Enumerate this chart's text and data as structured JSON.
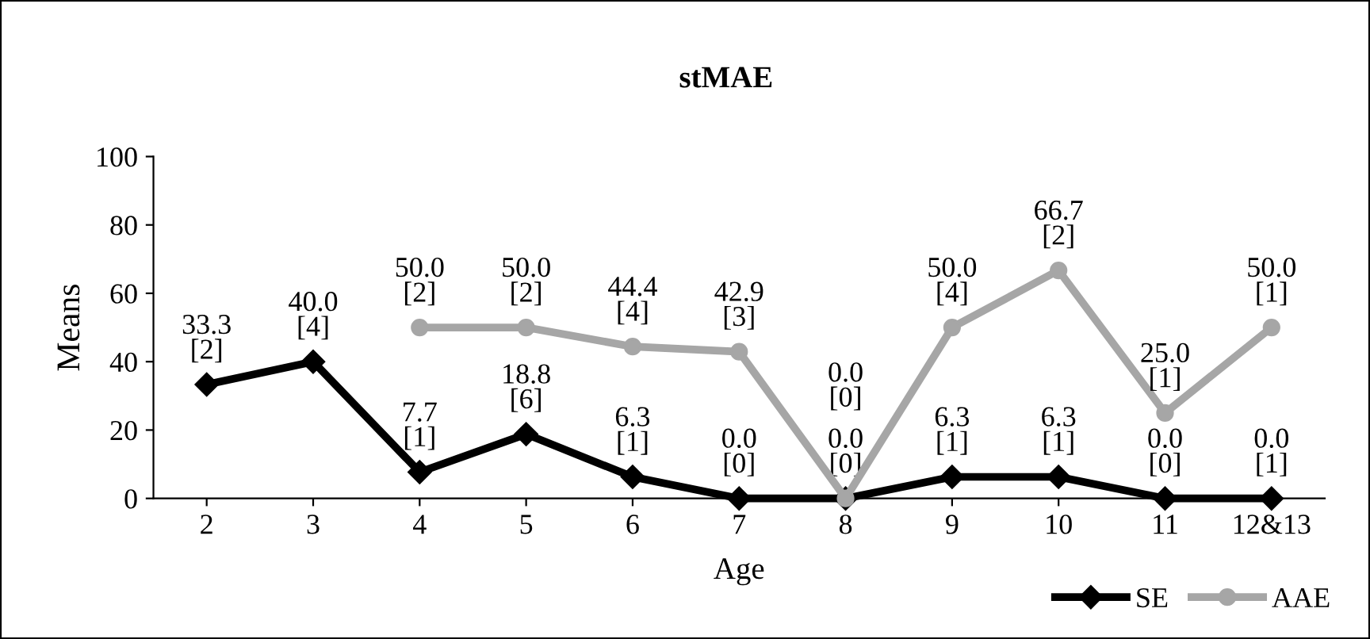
{
  "chart_data": {
    "type": "line",
    "title": "stMAE",
    "xlabel": "Age",
    "ylabel": "Means",
    "categories": [
      "2",
      "3",
      "4",
      "5",
      "6",
      "7",
      "8",
      "9",
      "10",
      "11",
      "12&13"
    ],
    "series": [
      {
        "name": "SE",
        "color": "#000000",
        "marker": "diamond",
        "values": [
          33.3,
          40.0,
          7.7,
          18.8,
          6.3,
          0.0,
          0.0,
          6.3,
          6.3,
          0.0,
          0.0
        ],
        "value_labels": [
          "33.3\n[2]",
          "40.0\n[4]",
          "7.7\n[1]",
          "18.8\n[6]",
          "6.3\n[1]",
          "0.0\n[0]",
          "0.0\n[0]",
          "6.3\n[1]",
          "6.3\n[1]",
          "0.0\n[0]",
          "0.0\n[1]"
        ]
      },
      {
        "name": "AAE",
        "color": "#a6a6a6",
        "marker": "circle",
        "values": [
          null,
          null,
          50.0,
          50.0,
          44.4,
          42.9,
          0.0,
          50.0,
          66.7,
          25.0,
          50.0
        ],
        "value_labels": [
          null,
          null,
          "50.0\n[2]",
          "50.0\n[2]",
          "44.4\n[4]",
          "42.9\n[3]",
          "0.0\n[0]",
          "50.0\n[4]",
          "66.7\n[2]",
          "25.0\n[1]",
          "50.0\n[1]"
        ]
      }
    ],
    "ylim": [
      0,
      100
    ],
    "yticks": [
      0,
      20,
      40,
      60,
      80,
      100
    ],
    "grid": false,
    "legend": "bottom right",
    "line_style": "solid"
  }
}
